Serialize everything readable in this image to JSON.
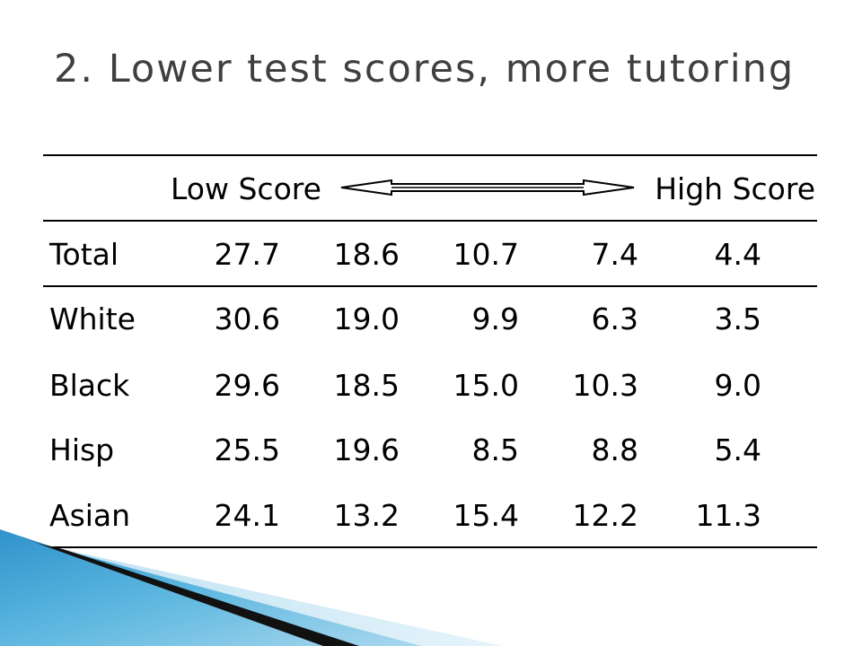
{
  "slide": {
    "title": "2. Lower test scores, more tutoring"
  },
  "table": {
    "header": {
      "low": "Low Score",
      "high": "High Score"
    },
    "rows": [
      {
        "label": "Total",
        "values": [
          "27.7",
          "18.6",
          "10.7",
          "7.4",
          "4.4"
        ]
      },
      {
        "label": "White",
        "values": [
          "30.6",
          "19.0",
          "9.9",
          "6.3",
          "3.5"
        ]
      },
      {
        "label": "Black",
        "values": [
          "29.6",
          "18.5",
          "15.0",
          "10.3",
          "9.0"
        ]
      },
      {
        "label": "Hisp",
        "values": [
          "25.5",
          "19.6",
          "8.5",
          "8.8",
          "5.4"
        ]
      },
      {
        "label": "Asian",
        "values": [
          "24.1",
          "13.2",
          "15.4",
          "12.2",
          "11.3"
        ]
      }
    ]
  },
  "colors": {
    "title": "#3f3f3f",
    "accent_blue": "#4aa8d8",
    "accent_dark": "#1a1a1a"
  }
}
